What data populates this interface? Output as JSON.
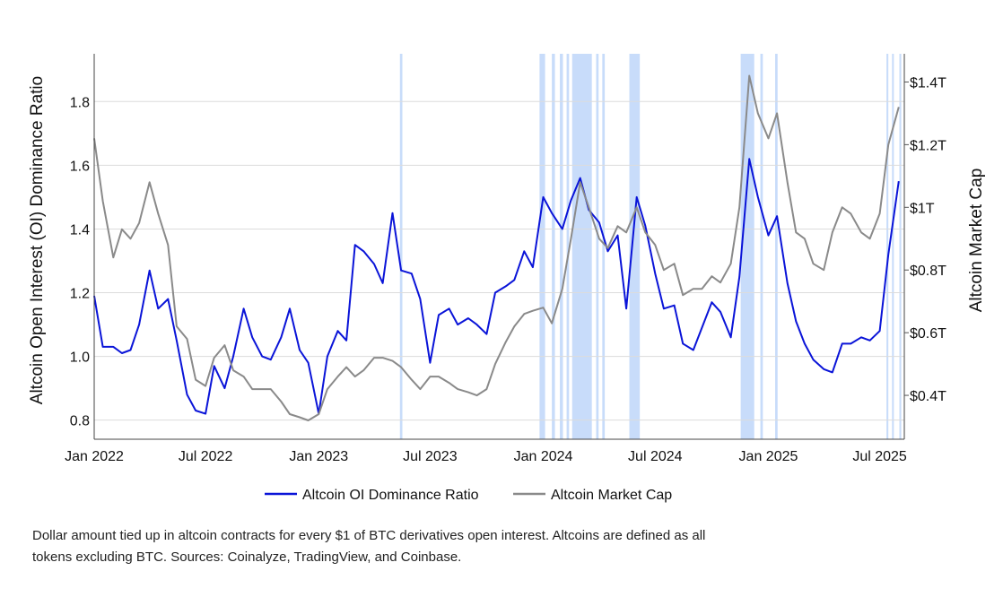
{
  "chart_data": {
    "type": "line",
    "ylabel": "Altcoin Open Interest (OI) Dominance Ratio",
    "y2label": "Altcoin Market Cap",
    "ylim": [
      0.74,
      1.95
    ],
    "y2lim": [
      0.26,
      1.49
    ],
    "yticks": [
      "0.8",
      "1.0",
      "1.2",
      "1.4",
      "1.6",
      "1.8"
    ],
    "y2ticks": [
      "$0.4T",
      "$0.6T",
      "$0.8T",
      "$1T",
      "$1.2T",
      "$1.4T"
    ],
    "xticks": [
      "Jan 2022",
      "Jul 2022",
      "Jan 2023",
      "Jul 2023",
      "Jan 2024",
      "Jul 2024",
      "Jan 2025",
      "Jul 2025"
    ],
    "grid": true,
    "legend_position": "bottom-center",
    "series": [
      {
        "name": "Altcoin OI Dominance Ratio",
        "color": "#0a14d8",
        "axis": "left",
        "x": [
          "2022-01-01",
          "2022-01-15",
          "2022-02-01",
          "2022-02-15",
          "2022-03-01",
          "2022-03-15",
          "2022-04-01",
          "2022-04-15",
          "2022-05-01",
          "2022-05-15",
          "2022-06-01",
          "2022-06-15",
          "2022-07-01",
          "2022-07-15",
          "2022-08-01",
          "2022-08-15",
          "2022-09-01",
          "2022-09-15",
          "2022-10-01",
          "2022-10-15",
          "2022-11-01",
          "2022-11-15",
          "2022-12-01",
          "2022-12-15",
          "2023-01-01",
          "2023-01-15",
          "2023-02-01",
          "2023-02-15",
          "2023-03-01",
          "2023-03-15",
          "2023-04-01",
          "2023-04-15",
          "2023-05-01",
          "2023-05-15",
          "2023-06-01",
          "2023-06-15",
          "2023-07-01",
          "2023-07-15",
          "2023-08-01",
          "2023-08-15",
          "2023-09-01",
          "2023-09-15",
          "2023-10-01",
          "2023-10-15",
          "2023-11-01",
          "2023-11-15",
          "2023-12-01",
          "2023-12-15",
          "2024-01-01",
          "2024-01-15",
          "2024-02-01",
          "2024-02-15",
          "2024-03-01",
          "2024-03-15",
          "2024-04-01",
          "2024-04-15",
          "2024-05-01",
          "2024-05-15",
          "2024-06-01",
          "2024-06-15",
          "2024-07-01",
          "2024-07-15",
          "2024-08-01",
          "2024-08-15",
          "2024-09-01",
          "2024-09-15",
          "2024-10-01",
          "2024-10-15",
          "2024-11-01",
          "2024-11-15",
          "2024-12-01",
          "2024-12-15",
          "2025-01-01",
          "2025-01-15",
          "2025-02-01",
          "2025-02-15",
          "2025-03-01",
          "2025-03-15",
          "2025-04-01",
          "2025-04-15",
          "2025-05-01",
          "2025-05-15",
          "2025-06-01",
          "2025-06-15",
          "2025-07-01",
          "2025-07-15",
          "2025-08-01"
        ],
        "values": [
          1.19,
          1.03,
          1.03,
          1.01,
          1.02,
          1.1,
          1.27,
          1.15,
          1.18,
          1.05,
          0.88,
          0.83,
          0.82,
          0.97,
          0.9,
          1.0,
          1.15,
          1.06,
          1.0,
          0.99,
          1.06,
          1.15,
          1.02,
          0.98,
          0.82,
          1.0,
          1.08,
          1.05,
          1.35,
          1.33,
          1.29,
          1.23,
          1.45,
          1.27,
          1.26,
          1.18,
          0.98,
          1.13,
          1.15,
          1.1,
          1.12,
          1.1,
          1.07,
          1.2,
          1.22,
          1.24,
          1.33,
          1.28,
          1.5,
          1.45,
          1.4,
          1.49,
          1.56,
          1.46,
          1.42,
          1.33,
          1.38,
          1.15,
          1.5,
          1.41,
          1.26,
          1.15,
          1.16,
          1.04,
          1.02,
          1.09,
          1.17,
          1.14,
          1.06,
          1.25,
          1.62,
          1.5,
          1.38,
          1.44,
          1.23,
          1.11,
          1.04,
          0.99,
          0.96,
          0.95,
          1.04,
          1.04,
          1.06,
          1.05,
          1.08,
          1.32,
          1.55
        ]
      },
      {
        "name": "Altcoin Market Cap",
        "color": "#8a8a8a",
        "axis": "right",
        "x": [
          "2022-01-01",
          "2022-01-15",
          "2022-02-01",
          "2022-02-15",
          "2022-03-01",
          "2022-03-15",
          "2022-04-01",
          "2022-04-15",
          "2022-05-01",
          "2022-05-15",
          "2022-06-01",
          "2022-06-15",
          "2022-07-01",
          "2022-07-15",
          "2022-08-01",
          "2022-08-15",
          "2022-09-01",
          "2022-09-15",
          "2022-10-01",
          "2022-10-15",
          "2022-11-01",
          "2022-11-15",
          "2022-12-01",
          "2022-12-15",
          "2023-01-01",
          "2023-01-15",
          "2023-02-01",
          "2023-02-15",
          "2023-03-01",
          "2023-03-15",
          "2023-04-01",
          "2023-04-15",
          "2023-05-01",
          "2023-05-15",
          "2023-06-01",
          "2023-06-15",
          "2023-07-01",
          "2023-07-15",
          "2023-08-01",
          "2023-08-15",
          "2023-09-01",
          "2023-09-15",
          "2023-10-01",
          "2023-10-15",
          "2023-11-01",
          "2023-11-15",
          "2023-12-01",
          "2023-12-15",
          "2024-01-01",
          "2024-01-15",
          "2024-02-01",
          "2024-02-15",
          "2024-03-01",
          "2024-03-15",
          "2024-04-01",
          "2024-04-15",
          "2024-05-01",
          "2024-05-15",
          "2024-06-01",
          "2024-06-15",
          "2024-07-01",
          "2024-07-15",
          "2024-08-01",
          "2024-08-15",
          "2024-09-01",
          "2024-09-15",
          "2024-10-01",
          "2024-10-15",
          "2024-11-01",
          "2024-11-15",
          "2024-12-01",
          "2024-12-15",
          "2025-01-01",
          "2025-01-15",
          "2025-02-01",
          "2025-02-15",
          "2025-03-01",
          "2025-03-15",
          "2025-04-01",
          "2025-04-15",
          "2025-05-01",
          "2025-05-15",
          "2025-06-01",
          "2025-06-15",
          "2025-07-01",
          "2025-07-15",
          "2025-08-01"
        ],
        "values": [
          1.22,
          1.02,
          0.84,
          0.93,
          0.9,
          0.95,
          1.08,
          0.98,
          0.88,
          0.62,
          0.58,
          0.45,
          0.43,
          0.52,
          0.56,
          0.48,
          0.46,
          0.42,
          0.42,
          0.42,
          0.38,
          0.34,
          0.33,
          0.32,
          0.34,
          0.42,
          0.46,
          0.49,
          0.46,
          0.48,
          0.52,
          0.52,
          0.51,
          0.49,
          0.45,
          0.42,
          0.46,
          0.46,
          0.44,
          0.42,
          0.41,
          0.4,
          0.42,
          0.5,
          0.57,
          0.62,
          0.66,
          0.67,
          0.68,
          0.63,
          0.74,
          0.9,
          1.08,
          1.0,
          0.9,
          0.87,
          0.94,
          0.92,
          1.0,
          0.92,
          0.88,
          0.8,
          0.82,
          0.72,
          0.74,
          0.74,
          0.78,
          0.76,
          0.82,
          1.0,
          1.42,
          1.3,
          1.22,
          1.3,
          1.08,
          0.92,
          0.9,
          0.82,
          0.8,
          0.92,
          1.0,
          0.98,
          0.92,
          0.9,
          0.98,
          1.2,
          1.32
        ]
      }
    ],
    "shaded_ranges": [
      [
        "2023-05-13",
        "2023-05-17"
      ],
      [
        "2023-12-26",
        "2024-01-04"
      ],
      [
        "2024-01-15",
        "2024-01-20"
      ],
      [
        "2024-01-28",
        "2024-02-02"
      ],
      [
        "2024-02-08",
        "2024-02-12"
      ],
      [
        "2024-02-17",
        "2024-03-20"
      ],
      [
        "2024-03-27",
        "2024-03-31"
      ],
      [
        "2024-04-06",
        "2024-04-10"
      ],
      [
        "2024-05-20",
        "2024-06-06"
      ],
      [
        "2024-11-17",
        "2024-12-09"
      ],
      [
        "2024-12-19",
        "2024-12-23"
      ],
      [
        "2025-01-12",
        "2025-01-16"
      ],
      [
        "2025-07-12",
        "2025-07-15"
      ],
      [
        "2025-07-21",
        "2025-07-24"
      ],
      [
        "2025-08-02",
        "2025-08-05"
      ]
    ],
    "shade_color": "#c8dcfa"
  },
  "legend": {
    "items": [
      "Altcoin OI Dominance Ratio",
      "Altcoin Market Cap"
    ]
  },
  "caption": {
    "line1": "Dollar amount tied up in altcoin contracts for every $1 of BTC derivatives open interest. Altcoins are defined as all",
    "line2": "tokens excluding BTC. Sources: Coinalyze, TradingView, and Coinbase."
  }
}
